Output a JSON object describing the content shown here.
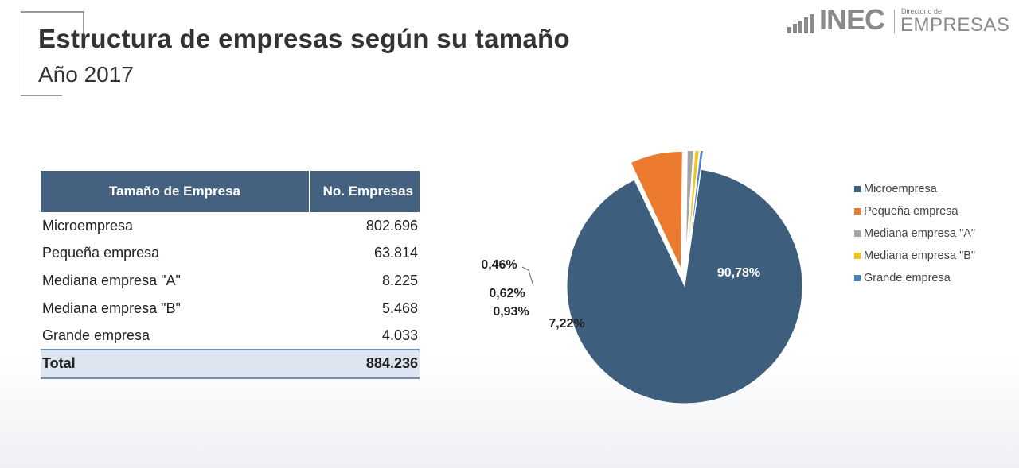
{
  "header": {
    "title": "Estructura de empresas según su tamaño",
    "subtitle": "Año 2017"
  },
  "logo": {
    "brand": "INEC",
    "small_text": "Directorio de",
    "product": "EMPRESAS"
  },
  "table": {
    "headers": [
      "Tamaño de Empresa",
      "No. Empresas"
    ],
    "rows": [
      {
        "name": "Microempresa",
        "count": "802.696"
      },
      {
        "name": "Pequeña empresa",
        "count": "63.814"
      },
      {
        "name": "Mediana empresa \"A\"",
        "count": "8.225"
      },
      {
        "name": "Mediana empresa \"B\"",
        "count": "5.468"
      },
      {
        "name": "Grande empresa",
        "count": "4.033"
      }
    ],
    "total": {
      "name": "Total",
      "count": "884.236"
    }
  },
  "colors": {
    "micro": "#3d5f7d",
    "pequena": "#ec7a2f",
    "mediana_a": "#a5a5a5",
    "mediana_b": "#f3c519",
    "grande": "#4f7ec2",
    "header_bg": "#44627f"
  },
  "chart_data": {
    "type": "pie",
    "title": "",
    "slices": [
      {
        "name": "Microempresa",
        "value": 90.78,
        "label": "90,78%",
        "color": "#3d5f7d"
      },
      {
        "name": "Pequeña empresa",
        "value": 7.22,
        "label": "7,22%",
        "color": "#ec7a2f"
      },
      {
        "name": "Mediana empresa \"A\"",
        "value": 0.93,
        "label": "0,93%",
        "color": "#a5a5a5"
      },
      {
        "name": "Mediana empresa \"B\"",
        "value": 0.62,
        "label": "0,62%",
        "color": "#f3c519"
      },
      {
        "name": "Grande empresa",
        "value": 0.46,
        "label": "0,46%",
        "color": "#4f7ec2"
      }
    ],
    "legend": [
      "Microempresa",
      "Pequeña empresa",
      "Mediana empresa \"A\"",
      "Mediana empresa \"B\"",
      "Grande empresa"
    ],
    "legend_position": "right"
  }
}
